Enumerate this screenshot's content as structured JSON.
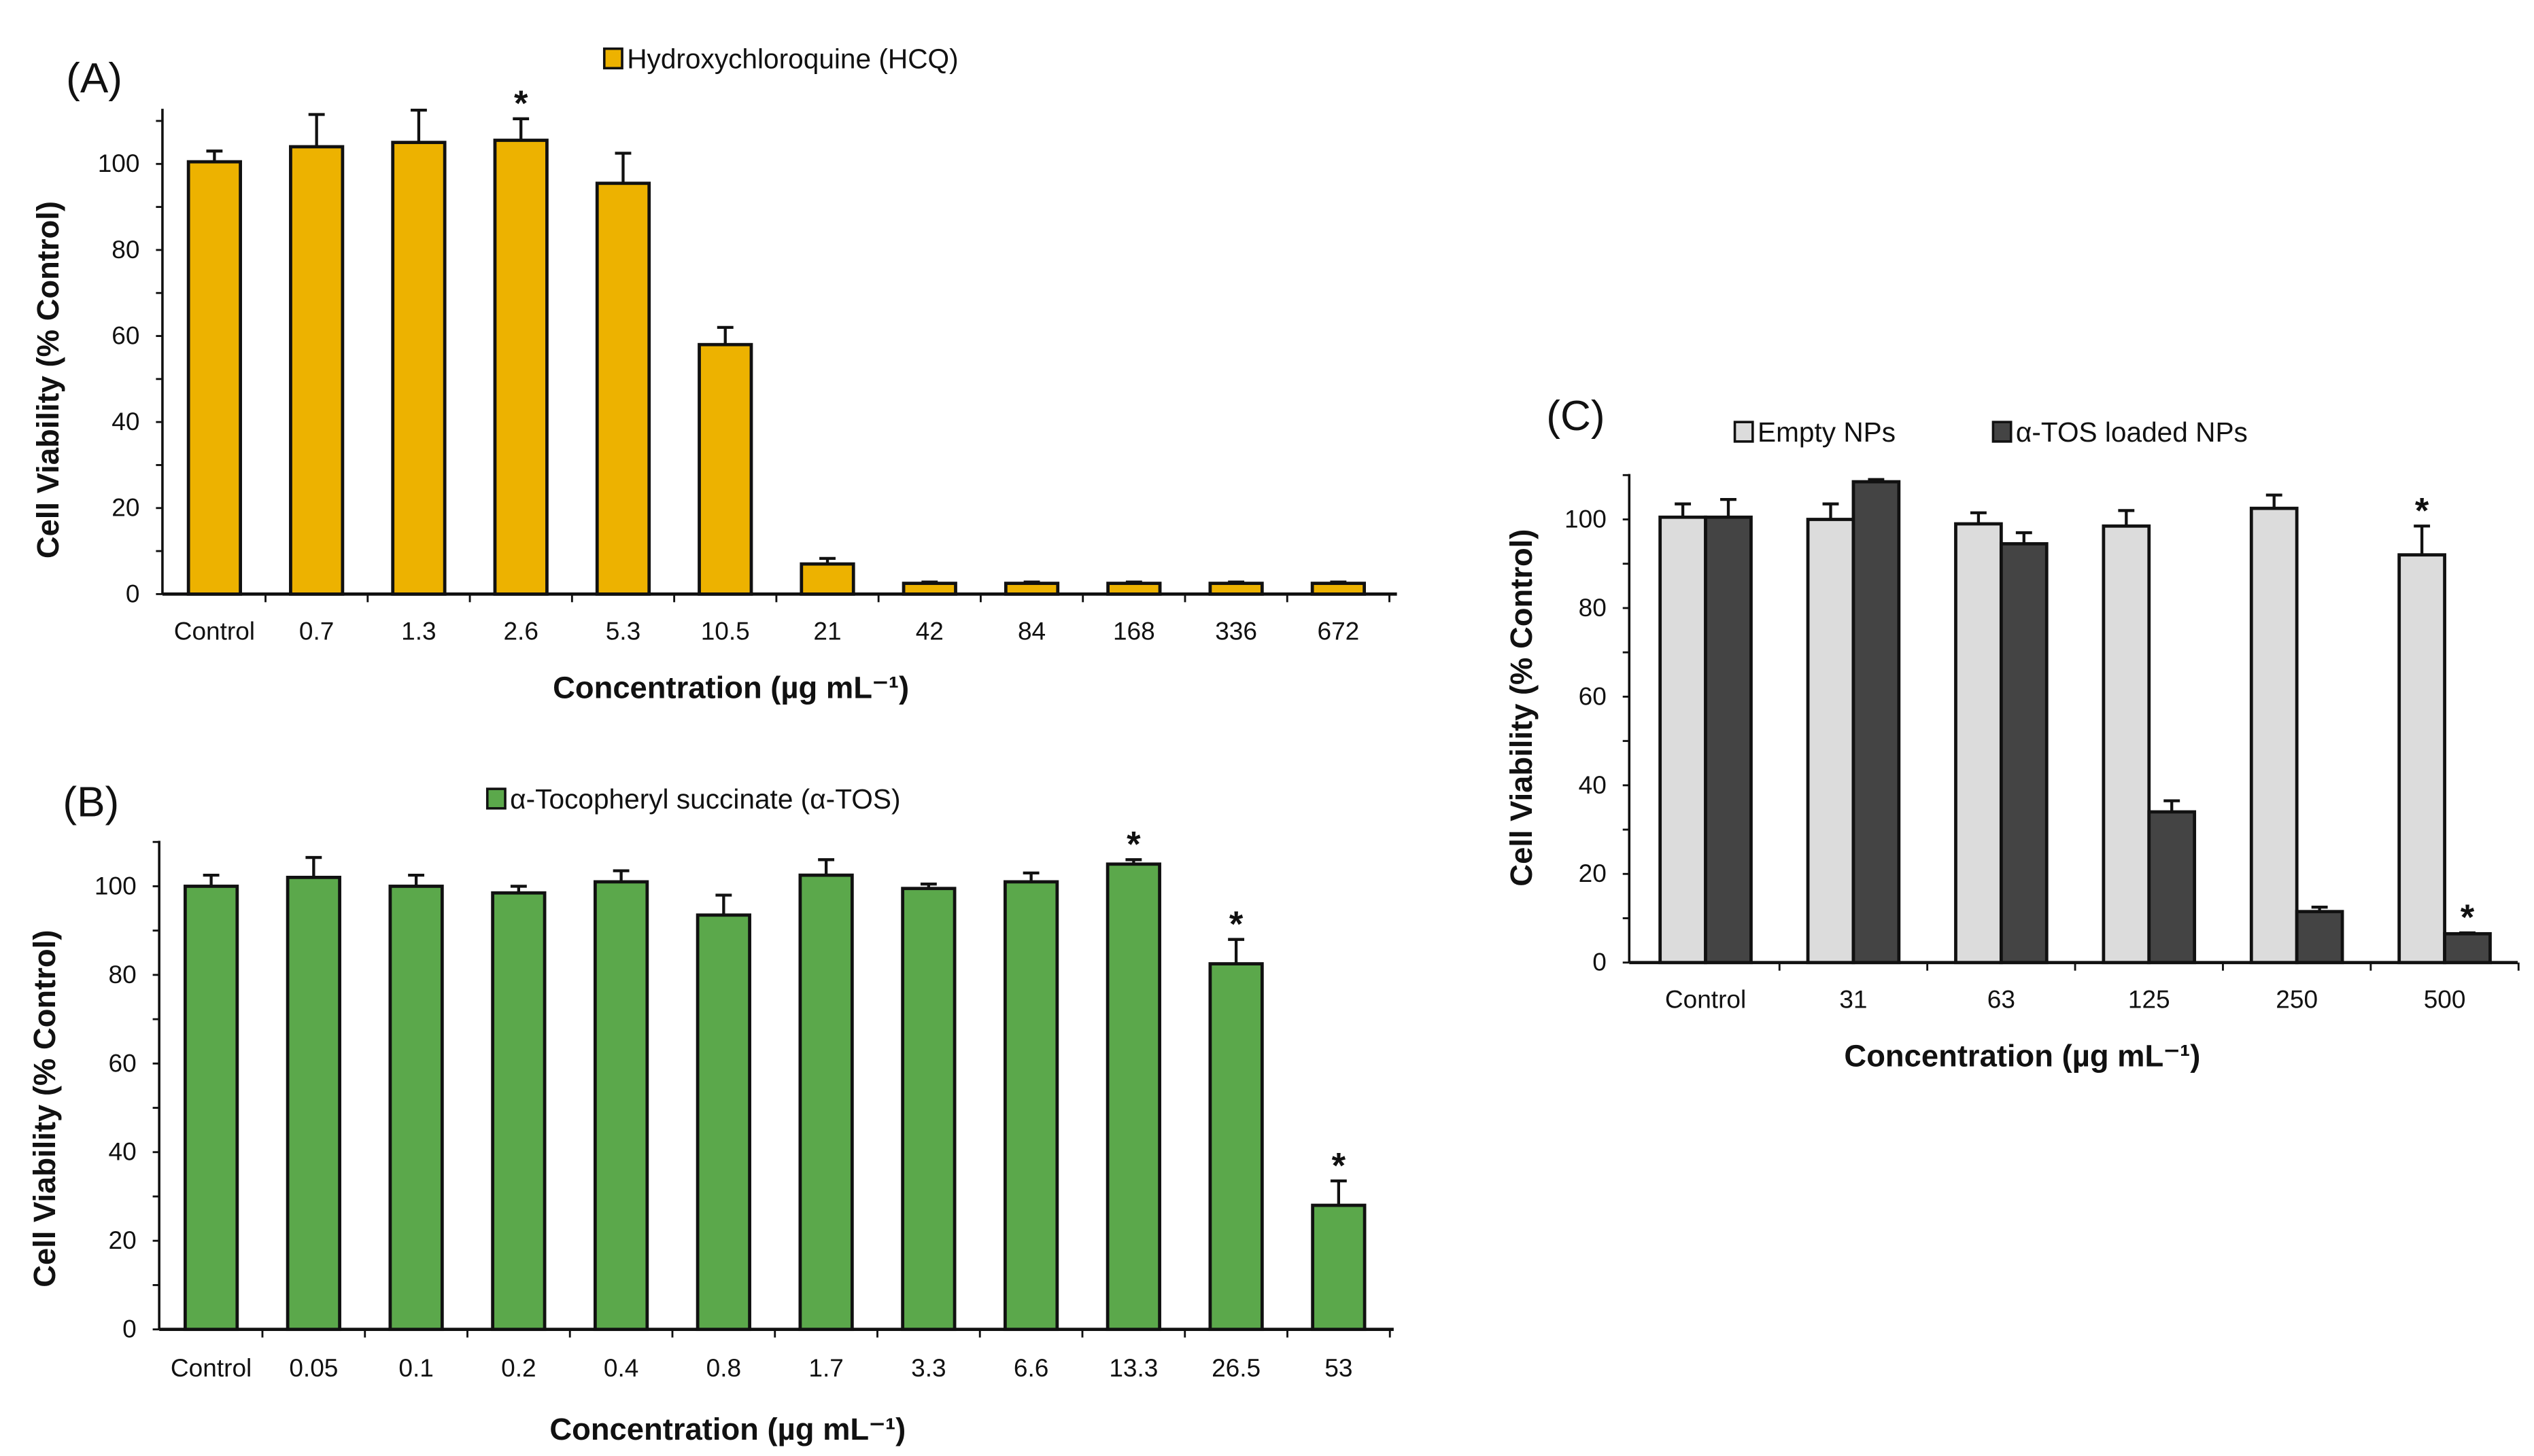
{
  "chart_data": [
    {
      "panel": "(A)",
      "type": "bar",
      "legend": [
        "Hydroxychloroquine (HCQ)"
      ],
      "legend_placement": "top-center",
      "xlabel": "Concentration (µg mL⁻¹)",
      "ylabel": "Cell Viability (% Control)",
      "ylim": [
        0,
        112
      ],
      "yticks": [
        "0",
        "20",
        "40",
        "60",
        "80",
        "100"
      ],
      "categories": [
        "Control",
        "0.7",
        "1.3",
        "2.6",
        "5.3",
        "10.5",
        "21",
        "42",
        "84",
        "168",
        "336",
        "672"
      ],
      "series": [
        {
          "name": "Hydroxychloroquine (HCQ)",
          "color": "#EDB200",
          "values": [
            100.5,
            104,
            105,
            105.5,
            95.5,
            58,
            7,
            2.5,
            2.5,
            2.5,
            2.5,
            2.5
          ],
          "errors": [
            2.5,
            7.5,
            7.5,
            5,
            7,
            4,
            1.3,
            0.3,
            0.3,
            0.3,
            0.3,
            0.3
          ],
          "significant": [
            false,
            false,
            false,
            true,
            false,
            false,
            false,
            false,
            false,
            false,
            false,
            false
          ]
        }
      ],
      "annotation": "*"
    },
    {
      "panel": "(B)",
      "type": "bar",
      "legend": [
        "α-Tocopheryl succinate (α-TOS)"
      ],
      "legend_placement": "top-center",
      "xlabel": "Concentration (µg mL⁻¹)",
      "ylabel": "Cell Viability (% Control)",
      "ylim": [
        0,
        110
      ],
      "yticks": [
        "0",
        "20",
        "40",
        "60",
        "80",
        "100"
      ],
      "categories": [
        "Control",
        "0.05",
        "0.1",
        "0.2",
        "0.4",
        "0.8",
        "1.7",
        "3.3",
        "6.6",
        "13.3",
        "26.5",
        "53"
      ],
      "series": [
        {
          "name": "α-Tocopheryl succinate (α-TOS)",
          "color": "#5BA84B",
          "values": [
            100,
            102,
            100,
            98.5,
            101,
            93.5,
            102.5,
            99.5,
            101,
            105,
            82.5,
            28
          ],
          "errors": [
            2.5,
            4.5,
            2.5,
            1.5,
            2.5,
            4.5,
            3.5,
            1,
            2,
            1,
            5.5,
            5.5
          ],
          "significant": [
            false,
            false,
            false,
            false,
            false,
            false,
            false,
            false,
            false,
            true,
            true,
            true
          ]
        }
      ],
      "annotation": "*"
    },
    {
      "panel": "(C)",
      "type": "bar",
      "legend": [
        "Empty NPs",
        "α-TOS loaded NPs"
      ],
      "legend_placement": "top-center",
      "xlabel": "Concentration (µg mL⁻¹)",
      "ylabel": "Cell Viability (% Control)",
      "ylim": [
        0,
        110
      ],
      "yticks": [
        "0",
        "20",
        "40",
        "60",
        "80",
        "100"
      ],
      "categories": [
        "Control",
        "31",
        "63",
        "125",
        "250",
        "500"
      ],
      "series": [
        {
          "name": "Empty NPs",
          "color": "#DCDCDC",
          "values": [
            100.5,
            100,
            99,
            98.5,
            102.5,
            92
          ],
          "errors": [
            3,
            3.5,
            2.5,
            3.5,
            3,
            6.5
          ],
          "significant": [
            false,
            false,
            false,
            false,
            false,
            true
          ]
        },
        {
          "name": "α-TOS loaded NPs",
          "color": "#444444",
          "values": [
            100.5,
            108.5,
            94.5,
            34,
            11.5,
            6.5
          ],
          "errors": [
            4,
            0.5,
            2.5,
            2.5,
            1,
            0.2
          ],
          "significant": [
            false,
            false,
            false,
            false,
            false,
            true
          ]
        }
      ],
      "annotation": "*"
    }
  ]
}
